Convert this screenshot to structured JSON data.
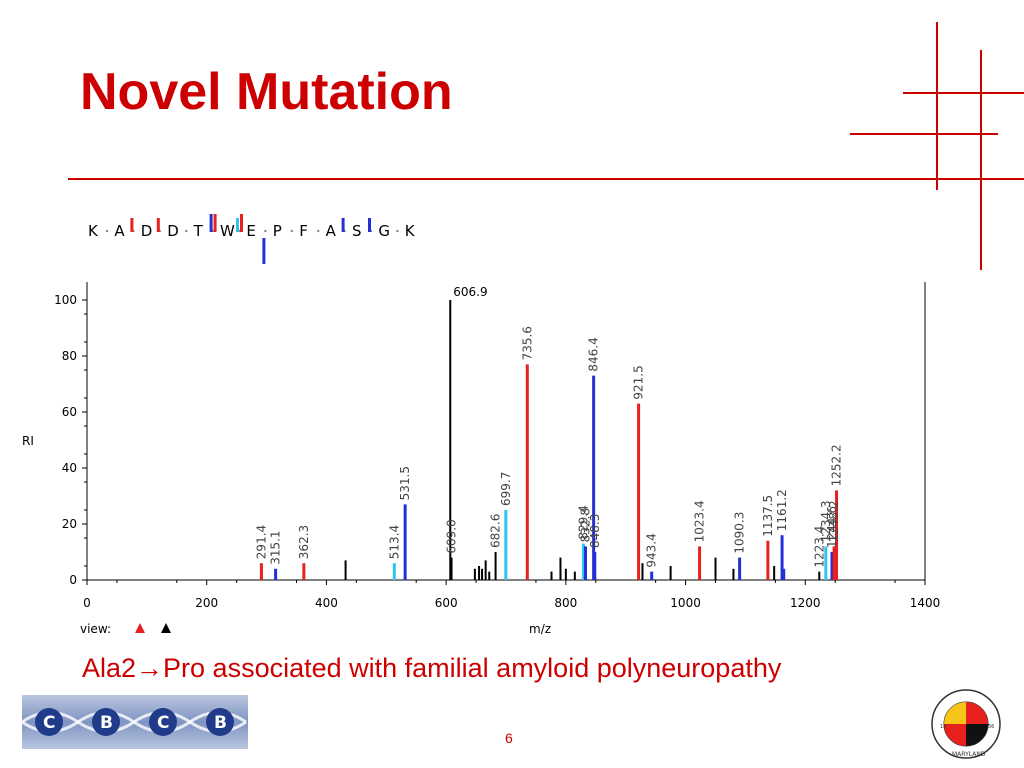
{
  "slide": {
    "title": "Novel Mutation",
    "caption": "Ala2→Pro associated with familial amyloid polyneuropathy",
    "page_number": "6",
    "logo_text": "CBCB",
    "seal_text": "UNIVERSITY OF MARYLAND 1856"
  },
  "colors": {
    "title": "#cc0000",
    "red_ion": "#e8211f",
    "blue_ion": "#2430d6",
    "cyan_ion": "#2ec4f0",
    "black_ion": "#000000"
  },
  "peptide": {
    "residues": [
      "K",
      "A",
      "D",
      "D",
      "T",
      "W",
      "E",
      "P",
      "F",
      "A",
      "S",
      "G",
      "K"
    ],
    "markers": [
      {
        "after": 1,
        "color": "red",
        "dir": "up",
        "size": 1
      },
      {
        "after": 2,
        "color": "red",
        "dir": "up",
        "size": 1
      },
      {
        "after": 4,
        "color": "blue",
        "dir": "up",
        "size": 2
      },
      {
        "after": 4,
        "color": "red",
        "dir": "up",
        "size": 2
      },
      {
        "after": 5,
        "color": "cyan",
        "dir": "up",
        "size": 1
      },
      {
        "after": 5,
        "color": "red",
        "dir": "up",
        "size": 3
      },
      {
        "after": 6,
        "color": "blue",
        "dir": "down",
        "size": 3
      },
      {
        "after": 9,
        "color": "blue",
        "dir": "up",
        "size": 1
      },
      {
        "after": 10,
        "color": "blue",
        "dir": "up",
        "size": 1
      }
    ]
  },
  "chart_data": {
    "type": "bar",
    "xlabel": "m/z",
    "ylabel": "RI",
    "xlim": [
      0,
      1400
    ],
    "ylim": [
      0,
      100
    ],
    "xticks": [
      0,
      200,
      400,
      600,
      800,
      1000,
      1200,
      1400
    ],
    "yticks": [
      0,
      20,
      40,
      60,
      80,
      100
    ],
    "view_label": "view:",
    "peaks": [
      {
        "mz": 291.4,
        "ri": 6,
        "color": "red",
        "label": "291.4"
      },
      {
        "mz": 315.1,
        "ri": 4,
        "color": "blue",
        "label": "315.1"
      },
      {
        "mz": 362.3,
        "ri": 6,
        "color": "red",
        "label": "362.3"
      },
      {
        "mz": 432,
        "ri": 7,
        "color": "black",
        "label": ""
      },
      {
        "mz": 513.4,
        "ri": 6,
        "color": "cyan",
        "label": "513.4"
      },
      {
        "mz": 531.5,
        "ri": 27,
        "color": "blue",
        "label": "531.5"
      },
      {
        "mz": 606.9,
        "ri": 100,
        "color": "black",
        "label": "606.9"
      },
      {
        "mz": 609.0,
        "ri": 8,
        "color": "black",
        "label": "609.0"
      },
      {
        "mz": 648,
        "ri": 4,
        "color": "black",
        "label": ""
      },
      {
        "mz": 655,
        "ri": 5,
        "color": "black",
        "label": ""
      },
      {
        "mz": 660,
        "ri": 4,
        "color": "black",
        "label": ""
      },
      {
        "mz": 666,
        "ri": 7,
        "color": "black",
        "label": ""
      },
      {
        "mz": 672,
        "ri": 3,
        "color": "black",
        "label": ""
      },
      {
        "mz": 682.6,
        "ri": 10,
        "color": "black",
        "label": "682.6"
      },
      {
        "mz": 699.7,
        "ri": 25,
        "color": "cyan",
        "label": "699.7"
      },
      {
        "mz": 735.6,
        "ri": 77,
        "color": "red",
        "label": "735.6"
      },
      {
        "mz": 776,
        "ri": 3,
        "color": "black",
        "label": ""
      },
      {
        "mz": 791,
        "ri": 8,
        "color": "black",
        "label": ""
      },
      {
        "mz": 800,
        "ri": 4,
        "color": "black",
        "label": ""
      },
      {
        "mz": 815,
        "ri": 3,
        "color": "black",
        "label": ""
      },
      {
        "mz": 829.4,
        "ri": 13,
        "color": "cyan",
        "label": "829.4"
      },
      {
        "mz": 832.8,
        "ri": 12,
        "color": "blue",
        "label": "832.8"
      },
      {
        "mz": 846.4,
        "ri": 73,
        "color": "blue",
        "label": "846.4"
      },
      {
        "mz": 848.3,
        "ri": 10,
        "color": "blue",
        "label": "848.3"
      },
      {
        "mz": 921.5,
        "ri": 63,
        "color": "red",
        "label": "921.5"
      },
      {
        "mz": 928,
        "ri": 6,
        "color": "black",
        "label": ""
      },
      {
        "mz": 943.4,
        "ri": 3,
        "color": "blue",
        "label": "943.4"
      },
      {
        "mz": 975,
        "ri": 5,
        "color": "black",
        "label": ""
      },
      {
        "mz": 1023.4,
        "ri": 12,
        "color": "red",
        "label": "1023.4"
      },
      {
        "mz": 1050,
        "ri": 8,
        "color": "black",
        "label": ""
      },
      {
        "mz": 1080,
        "ri": 4,
        "color": "black",
        "label": ""
      },
      {
        "mz": 1090.3,
        "ri": 8,
        "color": "blue",
        "label": "1090.3"
      },
      {
        "mz": 1137.5,
        "ri": 14,
        "color": "red",
        "label": "1137.5"
      },
      {
        "mz": 1148,
        "ri": 5,
        "color": "black",
        "label": ""
      },
      {
        "mz": 1161.2,
        "ri": 16,
        "color": "blue",
        "label": "1161.2"
      },
      {
        "mz": 1164,
        "ri": 4,
        "color": "blue",
        "label": ""
      },
      {
        "mz": 1223.4,
        "ri": 3,
        "color": "black",
        "label": "1223.4"
      },
      {
        "mz": 1234.3,
        "ri": 12,
        "color": "cyan",
        "label": "1234.3"
      },
      {
        "mz": 1244.6,
        "ri": 10,
        "color": "blue",
        "label": "1244.6"
      },
      {
        "mz": 1248.2,
        "ri": 12,
        "color": "red",
        "label": "1248.2"
      },
      {
        "mz": 1252.2,
        "ri": 32,
        "color": "red",
        "label": "1252.2"
      }
    ]
  }
}
